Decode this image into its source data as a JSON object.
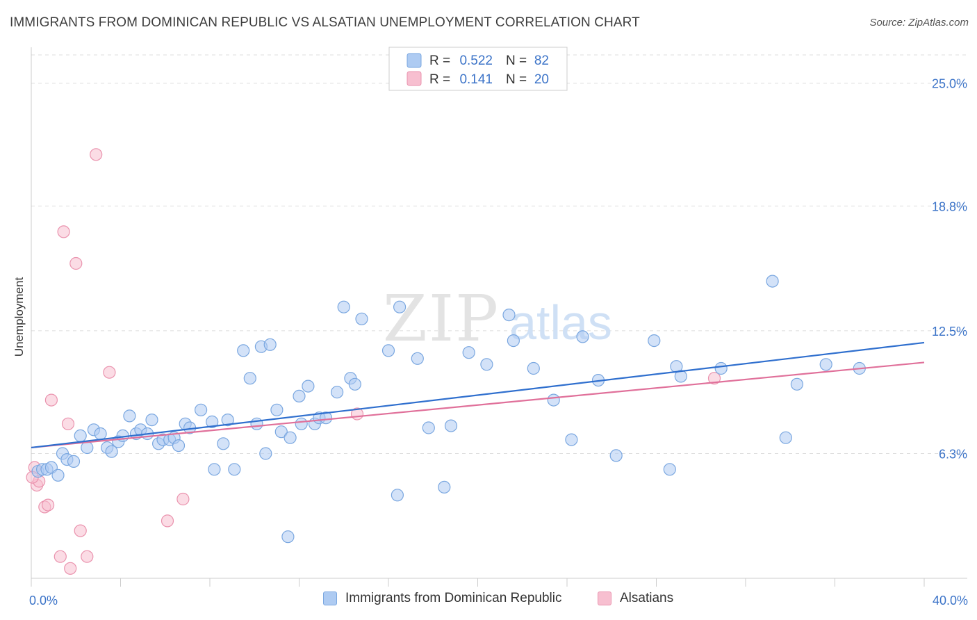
{
  "header": {
    "title": "IMMIGRANTS FROM DOMINICAN REPUBLIC VS ALSATIAN UNEMPLOYMENT CORRELATION CHART",
    "source": "Source: ZipAtlas.com"
  },
  "watermark": {
    "zip": "ZIP",
    "atlas": "atlas"
  },
  "legend": {
    "r_label": "R =",
    "n_label": "N =",
    "entries": [
      {
        "r": "0.522",
        "n": "82"
      },
      {
        "r": "0.141",
        "n": "20"
      }
    ]
  },
  "colors": {
    "blue_fill": "#aecbf2",
    "blue_stroke": "#7aa7e0",
    "blue_line": "#2f6fce",
    "pink_fill": "#f7bfd0",
    "pink_stroke": "#ea93ae",
    "pink_line": "#e0709a",
    "tick_text": "#3b73c8",
    "grid": "#dddddd"
  },
  "chart_data": {
    "type": "scatter",
    "title": "IMMIGRANTS FROM DOMINICAN REPUBLIC VS ALSATIAN UNEMPLOYMENT CORRELATION CHART",
    "xlabel": "",
    "ylabel": "Unemployment",
    "xlim": [
      0,
      40
    ],
    "ylim": [
      0,
      26.5
    ],
    "x_tick_labels": [
      "0.0%",
      "40.0%"
    ],
    "y_ticks": [
      {
        "value": 6.3,
        "label": "6.3%"
      },
      {
        "value": 12.5,
        "label": "12.5%"
      },
      {
        "value": 18.8,
        "label": "18.8%"
      },
      {
        "value": 25.0,
        "label": "25.0%"
      }
    ],
    "grid": true,
    "legend_position": "top-center",
    "series": [
      {
        "name": "Immigrants from Dominican Republic",
        "r": 0.522,
        "n": 82,
        "trend": {
          "x": [
            0,
            40
          ],
          "y": [
            6.6,
            11.9
          ]
        },
        "points": [
          [
            0.3,
            5.4
          ],
          [
            0.5,
            5.5
          ],
          [
            0.7,
            5.5
          ],
          [
            0.9,
            5.6
          ],
          [
            1.2,
            5.2
          ],
          [
            1.4,
            6.3
          ],
          [
            1.6,
            6.0
          ],
          [
            1.9,
            5.9
          ],
          [
            2.2,
            7.2
          ],
          [
            2.5,
            6.6
          ],
          [
            2.8,
            7.5
          ],
          [
            3.1,
            7.3
          ],
          [
            3.4,
            6.6
          ],
          [
            3.6,
            6.4
          ],
          [
            3.9,
            6.9
          ],
          [
            4.1,
            7.2
          ],
          [
            4.4,
            8.2
          ],
          [
            4.7,
            7.3
          ],
          [
            4.9,
            7.5
          ],
          [
            5.2,
            7.3
          ],
          [
            5.4,
            8.0
          ],
          [
            5.7,
            6.8
          ],
          [
            5.9,
            7.0
          ],
          [
            6.2,
            7.0
          ],
          [
            6.4,
            7.1
          ],
          [
            6.6,
            6.7
          ],
          [
            6.9,
            7.8
          ],
          [
            7.1,
            7.6
          ],
          [
            7.6,
            8.5
          ],
          [
            8.1,
            7.9
          ],
          [
            8.2,
            5.5
          ],
          [
            8.6,
            6.8
          ],
          [
            8.8,
            8.0
          ],
          [
            9.1,
            5.5
          ],
          [
            9.5,
            11.5
          ],
          [
            9.8,
            10.1
          ],
          [
            10.1,
            7.8
          ],
          [
            10.3,
            11.7
          ],
          [
            10.5,
            6.3
          ],
          [
            10.7,
            11.8
          ],
          [
            11.0,
            8.5
          ],
          [
            11.2,
            7.4
          ],
          [
            11.5,
            2.1
          ],
          [
            11.6,
            7.1
          ],
          [
            12.0,
            9.2
          ],
          [
            12.1,
            7.8
          ],
          [
            12.4,
            9.7
          ],
          [
            12.7,
            7.8
          ],
          [
            12.9,
            8.1
          ],
          [
            13.2,
            8.1
          ],
          [
            13.7,
            9.4
          ],
          [
            14.0,
            13.7
          ],
          [
            14.3,
            10.1
          ],
          [
            14.5,
            9.8
          ],
          [
            14.8,
            13.1
          ],
          [
            16.0,
            11.5
          ],
          [
            16.4,
            4.2
          ],
          [
            16.5,
            13.7
          ],
          [
            17.3,
            11.1
          ],
          [
            17.8,
            7.6
          ],
          [
            18.5,
            4.6
          ],
          [
            18.8,
            7.7
          ],
          [
            19.6,
            11.4
          ],
          [
            20.4,
            10.8
          ],
          [
            21.4,
            13.3
          ],
          [
            21.6,
            12.0
          ],
          [
            22.5,
            10.6
          ],
          [
            23.4,
            9.0
          ],
          [
            24.2,
            7.0
          ],
          [
            24.7,
            12.2
          ],
          [
            25.4,
            10.0
          ],
          [
            26.2,
            6.2
          ],
          [
            27.9,
            12.0
          ],
          [
            28.6,
            5.5
          ],
          [
            28.9,
            10.7
          ],
          [
            29.1,
            10.2
          ],
          [
            30.9,
            10.6
          ],
          [
            33.2,
            15.0
          ],
          [
            33.8,
            7.1
          ],
          [
            34.3,
            9.8
          ],
          [
            35.6,
            10.8
          ],
          [
            37.1,
            10.6
          ]
        ]
      },
      {
        "name": "Alsatians",
        "r": 0.141,
        "n": 20,
        "trend": {
          "x": [
            0,
            40
          ],
          "y": [
            6.6,
            10.9
          ]
        },
        "points": [
          [
            0.15,
            5.6
          ],
          [
            0.25,
            4.7
          ],
          [
            0.35,
            4.9
          ],
          [
            0.6,
            3.6
          ],
          [
            0.75,
            3.7
          ],
          [
            0.9,
            9.0
          ],
          [
            1.3,
            1.1
          ],
          [
            1.45,
            17.5
          ],
          [
            1.65,
            7.8
          ],
          [
            1.75,
            0.5
          ],
          [
            2.0,
            15.9
          ],
          [
            2.2,
            2.4
          ],
          [
            2.5,
            1.1
          ],
          [
            2.9,
            21.4
          ],
          [
            3.5,
            10.4
          ],
          [
            6.1,
            2.9
          ],
          [
            6.8,
            4.0
          ],
          [
            14.6,
            8.3
          ],
          [
            30.6,
            10.1
          ],
          [
            0.05,
            5.1
          ]
        ]
      }
    ]
  },
  "bottom_legend": {
    "items": [
      {
        "label": "Immigrants from Dominican Republic"
      },
      {
        "label": "Alsatians"
      }
    ]
  }
}
